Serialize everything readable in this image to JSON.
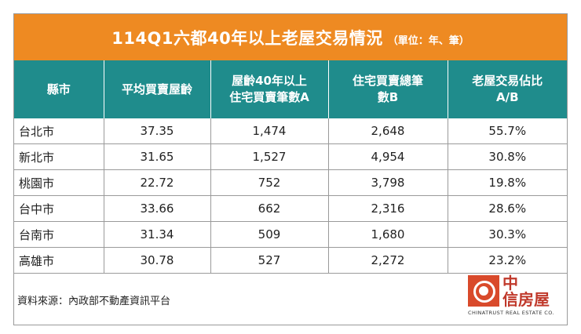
{
  "title": {
    "main": "114Q1六都40年以上老屋交易情況",
    "unit": "（單位：年、筆）"
  },
  "table": {
    "headers": [
      [
        "縣市"
      ],
      [
        "平均買賣屋齡"
      ],
      [
        "屋齡40年以上",
        "住宅買賣筆數A"
      ],
      [
        "住宅買賣總筆",
        "數B"
      ],
      [
        "老屋交易佔比",
        "A/B"
      ]
    ],
    "rows": [
      [
        "台北市",
        "37.35",
        "1,474",
        "2,648",
        "55.7%"
      ],
      [
        "新北市",
        "31.65",
        "1,527",
        "4,954",
        "30.8%"
      ],
      [
        "桃園市",
        "22.72",
        "752",
        "3,798",
        "19.8%"
      ],
      [
        "台中市",
        "33.66",
        "662",
        "2,316",
        "28.6%"
      ],
      [
        "台南市",
        "31.34",
        "509",
        "1,680",
        "30.3%"
      ],
      [
        "高雄市",
        "30.78",
        "527",
        "2,272",
        "23.2%"
      ]
    ]
  },
  "source": "資料來源：內政部不動產資訊平台",
  "logo": {
    "line1": "中",
    "line2": "信房屋",
    "english": "CHINATRUST REAL ESTATE CO."
  },
  "colors": {
    "title_bg": "#ee8a22",
    "header_bg": "#1f8c8c",
    "logo_red": "#d94a2b"
  }
}
